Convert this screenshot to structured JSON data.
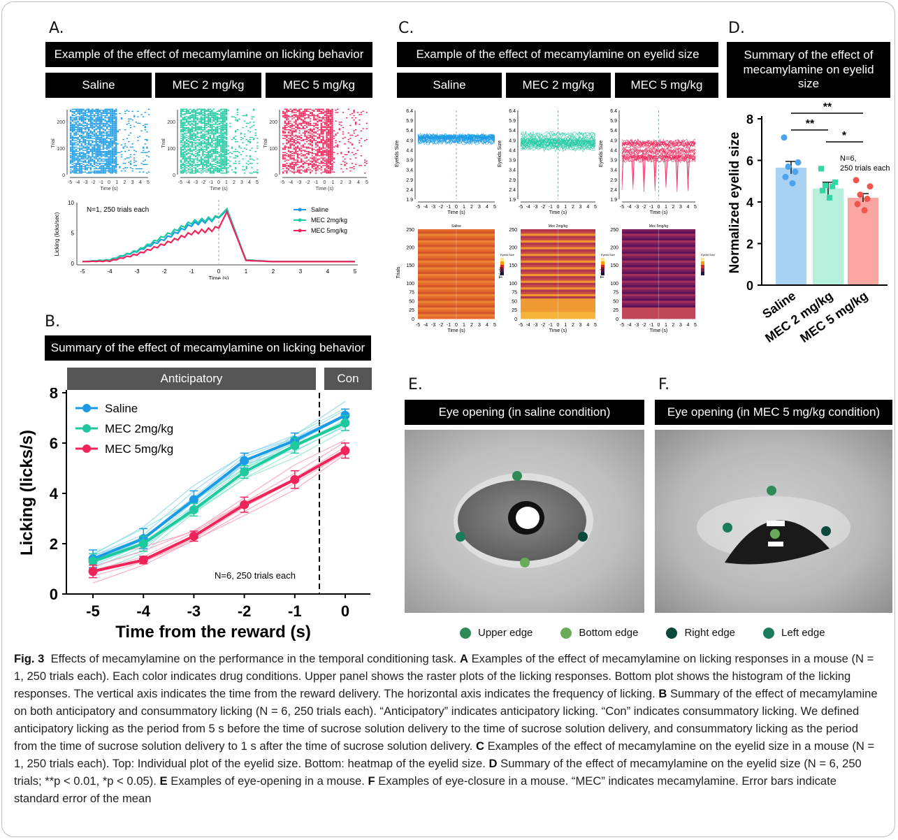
{
  "panels": {
    "A": {
      "letter": "A.",
      "header": "Example of the effect of mecamylamine on licking behavior",
      "conds": [
        "Saline",
        "MEC 2 mg/kg",
        "MEC 5 mg/kg"
      ],
      "raster_ylabel": "Trial",
      "raster_xlabel": "Time (s)",
      "hist_annotation": "N=1, 250 trials each",
      "hist_ylabel": "Licking (licks/sec)",
      "hist_xlabel": "Time (s)",
      "legend": [
        "Saline",
        "MEC 2mg/kg",
        "MEC 5mg/kg"
      ]
    },
    "B": {
      "letter": "B.",
      "header": "Summary of the effect of mecamylamine on licking behavior",
      "anticip": "Anticipatory",
      "con": "Con",
      "annotation": "N=6, 250 trials each"
    },
    "C": {
      "letter": "C.",
      "header": "Example of the effect of mecamylamine on eyelid size",
      "conds": [
        "Saline",
        "MEC 2 mg/kg",
        "MEC 5 mg/kg"
      ],
      "ylabel": "Eyelids Size",
      "xlabel": "Time (s)",
      "heat_titles": [
        "Saline",
        "Mec 2mg/kg",
        "Mec 5mg/kg"
      ],
      "heat_ylabel": "Trials",
      "heat_cbar": "Eyelid Size"
    },
    "D": {
      "letter": "D.",
      "header": "Summary of the effect of mecamylamine on eyelid size",
      "sig": [
        "**",
        "**",
        "*"
      ],
      "annotation_line1": "N=6,",
      "annotation_line2": "250 trials each"
    },
    "E": {
      "letter": "E.",
      "header": "Eye opening (in saline condition)"
    },
    "F": {
      "letter": "F.",
      "header": "Eye opening (in MEC 5 mg/kg condition)"
    }
  },
  "eye_legend": [
    {
      "label": "Upper edge",
      "color": "#2e8b57"
    },
    {
      "label": "Bottom edge",
      "color": "#6aab5a"
    },
    {
      "label": "Right edge",
      "color": "#0b4a3a"
    },
    {
      "label": "Left edge",
      "color": "#1a7a5c"
    }
  ],
  "colors": {
    "saline": "#1b9be6",
    "mec2": "#1fc9a0",
    "mec5": "#f0245a"
  },
  "chart_data": [
    {
      "id": "B",
      "type": "line",
      "x": [
        -5,
        -4,
        -3,
        -2,
        -1,
        0
      ],
      "xlabel": "Time from the reward (s)",
      "ylabel": "Licking (licks/s)",
      "ylim": [
        0,
        8
      ],
      "yticks": [
        0,
        2,
        4,
        6,
        8
      ],
      "series": [
        {
          "name": "Saline",
          "values": [
            1.4,
            2.2,
            3.75,
            5.3,
            6.1,
            7.1
          ],
          "err": [
            0.35,
            0.4,
            0.35,
            0.3,
            0.3,
            0.25
          ]
        },
        {
          "name": "MEC 2mg/kg",
          "values": [
            1.3,
            2.0,
            3.35,
            4.85,
            5.9,
            6.8
          ],
          "err": [
            0.3,
            0.3,
            0.25,
            0.25,
            0.3,
            0.3
          ]
        },
        {
          "name": "MEC 5mg/kg",
          "values": [
            0.9,
            1.35,
            2.3,
            3.55,
            4.55,
            5.7
          ],
          "err": [
            0.25,
            0.15,
            0.2,
            0.3,
            0.35,
            0.3
          ]
        }
      ]
    },
    {
      "id": "D",
      "type": "bar",
      "categories": [
        "Saline",
        "MEC 2 mg/kg",
        "MEC 5 mg/kg"
      ],
      "values": [
        5.65,
        4.65,
        4.2
      ],
      "err": [
        0.3,
        0.3,
        0.2
      ],
      "points": [
        [
          7.1,
          5.9,
          5.7,
          5.45,
          5.2,
          4.9
        ],
        [
          5.6,
          4.95,
          4.8,
          4.75,
          4.55,
          4.2
        ],
        [
          5.05,
          4.75,
          4.35,
          4.15,
          3.9,
          3.6
        ]
      ],
      "ylabel": "Normalized eyelid size",
      "ylim": [
        0,
        8
      ],
      "yticks": [
        0,
        2,
        4,
        6,
        8
      ]
    },
    {
      "id": "A-hist",
      "type": "line",
      "x": [
        -5,
        -4,
        -3,
        -2,
        -1,
        0,
        0.3,
        1,
        2,
        3,
        4,
        5
      ],
      "ylim": [
        0,
        10
      ],
      "yticks": [
        0,
        5,
        10
      ],
      "xticks": [
        -5,
        -4,
        -3,
        -2,
        -1,
        0,
        1,
        2,
        3,
        4,
        5
      ],
      "series": [
        {
          "name": "Saline",
          "values": [
            0.3,
            0.6,
            2.0,
            4.0,
            6.4,
            7.5,
            8.8,
            0.5,
            0.3,
            0.3,
            0.3,
            0.3
          ]
        },
        {
          "name": "MEC 2mg/kg",
          "values": [
            0.3,
            0.6,
            2.1,
            4.5,
            6.8,
            7.6,
            9.0,
            0.6,
            0.3,
            0.3,
            0.3,
            0.3
          ]
        },
        {
          "name": "MEC 5mg/kg",
          "values": [
            0.3,
            0.4,
            1.5,
            3.2,
            5.0,
            5.8,
            8.5,
            0.5,
            0.3,
            0.3,
            0.3,
            0.3
          ]
        }
      ]
    }
  ],
  "tick_labels": {
    "raster_y": [
      "0",
      "100",
      "200"
    ],
    "raster_x": [
      "-5",
      "-4",
      "-3",
      "-2",
      "-1",
      "0",
      "1",
      "2",
      "3",
      "4",
      "5"
    ],
    "eyelid_y": [
      "6.4",
      "5.9",
      "5.4",
      "4.9",
      "4.4",
      "3.9",
      "3.4",
      "2.9",
      "2.4",
      "1.9"
    ],
    "heat_y": [
      "0",
      "25",
      "50",
      "75",
      "100",
      "150",
      "200",
      "250"
    ]
  },
  "caption": {
    "fig": "Fig. 3",
    "title": "Effects of mecamylamine on the performance in the temporal conditioning task.",
    "A_label": "A",
    "A_text": "Examples of the effect of mecamylamine on licking responses in a mouse (N = 1, 250 trials each). Each color indicates drug conditions. Upper panel shows the raster plots of the licking responses. Bottom plot shows the histogram of the licking responses. The vertical axis indicates the time from the reward delivery. The horizontal axis indicates the frequency of licking.",
    "B_label": "B",
    "B_text": "Summary of the effect of mecamylamine on both anticipatory and consummatory licking (N = 6, 250 trials each). “Anticipatory” indicates anticipatory licking. “Con” indicates consummatory licking. We defined anticipatory licking as the period from 5 s before the time of sucrose solution delivery to the time of sucrose solution delivery, and consummatory licking as the period from the time of sucrose solution delivery to 1 s after the time of sucrose solution delivery.",
    "C_label": "C",
    "C_text": "Examples of the effect of mecamylamine on the eyelid size in a mouse (N = 1, 250 trials each). Top: Individual plot of the eyelid size. Bottom: heatmap of the eyelid size.",
    "D_label": "D",
    "D_text": "Summary of the effect of mecamylamine on the eyelid size (N = 6, 250 trials; **p < 0.01, *p < 0.05).",
    "E_label": "E",
    "E_text": "Examples of eye-opening in a mouse.",
    "F_label": "F",
    "F_text": "Examples of eye-closure in a mouse. “MEC” indicates mecamylamine. Error bars indicate standard error of the mean"
  }
}
